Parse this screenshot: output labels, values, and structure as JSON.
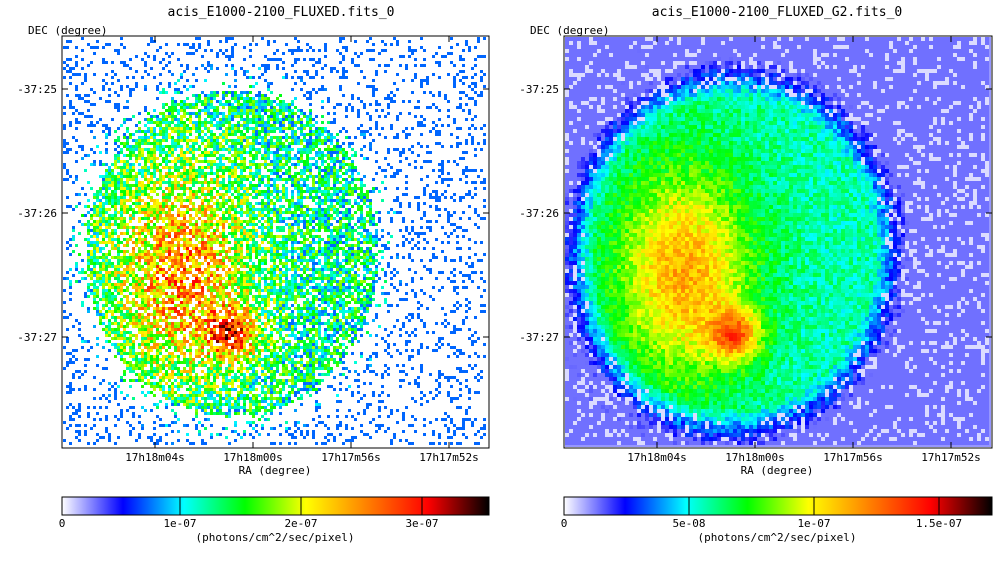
{
  "colormap": [
    "#ffffff",
    "#0000ff",
    "#00ffff",
    "#00ff00",
    "#ffff00",
    "#ff8000",
    "#ff0000",
    "#000000"
  ],
  "panels": [
    {
      "title": "acis_E1000-2100_FLUXED.fits_0",
      "ylabel": "DEC (degree)",
      "xlabel": "RA (degree)",
      "yticks": [
        "-37:25",
        "-37:26",
        "-37:27"
      ],
      "xticks": [
        "17h18m04s",
        "17h18m00s",
        "17h17m56s",
        "17h17m52s"
      ],
      "colorbar_ticks": [
        "0",
        "1e-07",
        "2e-07",
        "3e-07"
      ],
      "colorbar_unit": "(photons/cm^2/sec/pixel)",
      "style": "sparse"
    },
    {
      "title": "acis_E1000-2100_FLUXED_G2.fits_0",
      "ylabel": "DEC (degree)",
      "xlabel": "RA (degree)",
      "yticks": [
        "-37:25",
        "-37:26",
        "-37:27"
      ],
      "xticks": [
        "17h18m04s",
        "17h18m00s",
        "17h17m56s",
        "17h17m52s"
      ],
      "colorbar_ticks": [
        "0",
        "5e-08",
        "1e-07",
        "1.5e-07"
      ],
      "colorbar_unit": "(photons/cm^2/sec/pixel)",
      "style": "smooth"
    }
  ],
  "chart_data": [
    {
      "type": "heatmap",
      "title": "acis_E1000-2100_FLUXED.fits_0",
      "xlabel": "RA (degree)",
      "ylabel": "DEC (degree)",
      "x_ticks": [
        "17h18m04s",
        "17h18m00s",
        "17h17m56s",
        "17h17m52s"
      ],
      "y_ticks": [
        "-37:25",
        "-37:26",
        "-37:27"
      ],
      "colorbar": {
        "ticks": [
          0,
          1e-07,
          2e-07,
          3e-07
        ],
        "range": [
          0,
          3.5e-07
        ],
        "unit": "(photons/cm^2/sec/pixel)"
      }
    },
    {
      "type": "heatmap",
      "title": "acis_E1000-2100_FLUXED_G2.fits_0",
      "xlabel": "RA (degree)",
      "ylabel": "DEC (degree)",
      "x_ticks": [
        "17h18m04s",
        "17h18m00s",
        "17h17m56s",
        "17h17m52s"
      ],
      "y_ticks": [
        "-37:25",
        "-37:26",
        "-37:27"
      ],
      "colorbar": {
        "ticks": [
          0,
          5e-08,
          1e-07,
          1.5e-07
        ],
        "range": [
          0,
          1.7e-07
        ],
        "unit": "(photons/cm^2/sec/pixel)"
      }
    }
  ]
}
